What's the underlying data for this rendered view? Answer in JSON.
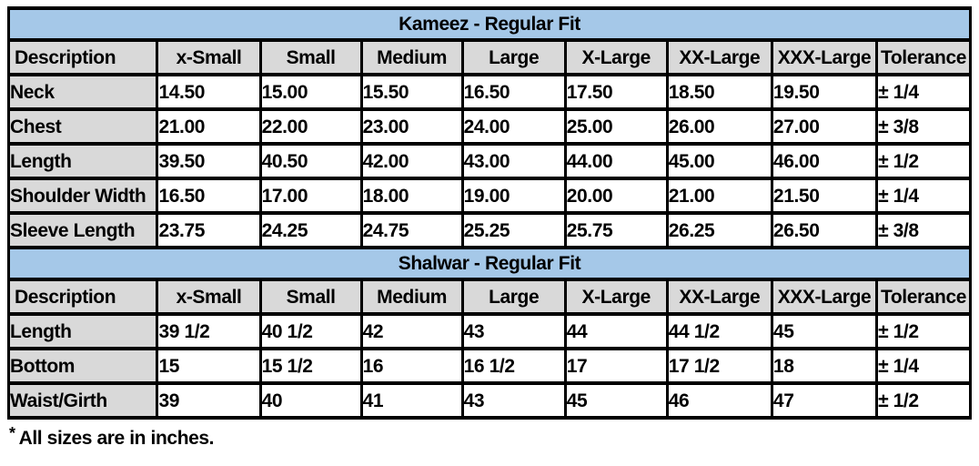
{
  "colors": {
    "section_header_bg": "#a5c8e8",
    "column_header_bg": "#d9d9d9",
    "cell_bg": "#ffffff",
    "border": "#000000",
    "text": "#000000"
  },
  "columns": [
    "Description",
    "x-Small",
    "Small",
    "Medium",
    "Large",
    "X-Large",
    "XX-Large",
    "XXX-Large",
    "Tolerance"
  ],
  "sections": [
    {
      "title": "Kameez - Regular Fit",
      "rows": [
        {
          "label": "Neck",
          "values": [
            "14.50",
            "15.00",
            "15.50",
            "16.50",
            "17.50",
            "18.50",
            "19.50"
          ],
          "tolerance": "± 1/4"
        },
        {
          "label": "Chest",
          "values": [
            "21.00",
            "22.00",
            "23.00",
            "24.00",
            "25.00",
            "26.00",
            "27.00"
          ],
          "tolerance": "± 3/8"
        },
        {
          "label": "Length",
          "values": [
            "39.50",
            "40.50",
            "42.00",
            "43.00",
            "44.00",
            "45.00",
            "46.00"
          ],
          "tolerance": "± 1/2"
        },
        {
          "label": "Shoulder Width",
          "values": [
            "16.50",
            "17.00",
            "18.00",
            "19.00",
            "20.00",
            "21.00",
            "21.50"
          ],
          "tolerance": "± 1/4"
        },
        {
          "label": "Sleeve Length",
          "values": [
            "23.75",
            "24.25",
            "24.75",
            "25.25",
            "25.75",
            "26.25",
            "26.50"
          ],
          "tolerance": "± 3/8"
        }
      ]
    },
    {
      "title": "Shalwar - Regular Fit",
      "rows": [
        {
          "label": "Length",
          "values": [
            "39 1/2",
            "40 1/2",
            "42",
            "43",
            "44",
            "44 1/2",
            "45"
          ],
          "tolerance": "± 1/2"
        },
        {
          "label": "Bottom",
          "values": [
            "15",
            "15 1/2",
            "16",
            "16 1/2",
            "17",
            "17 1/2",
            "18"
          ],
          "tolerance": "± 1/4"
        },
        {
          "label": "Waist/Girth",
          "values": [
            "39",
            "40",
            "41",
            "43",
            "45",
            "46",
            "47"
          ],
          "tolerance": "± 1/2"
        }
      ]
    }
  ],
  "footnote": {
    "star": "*",
    "text": "All sizes are in inches."
  }
}
